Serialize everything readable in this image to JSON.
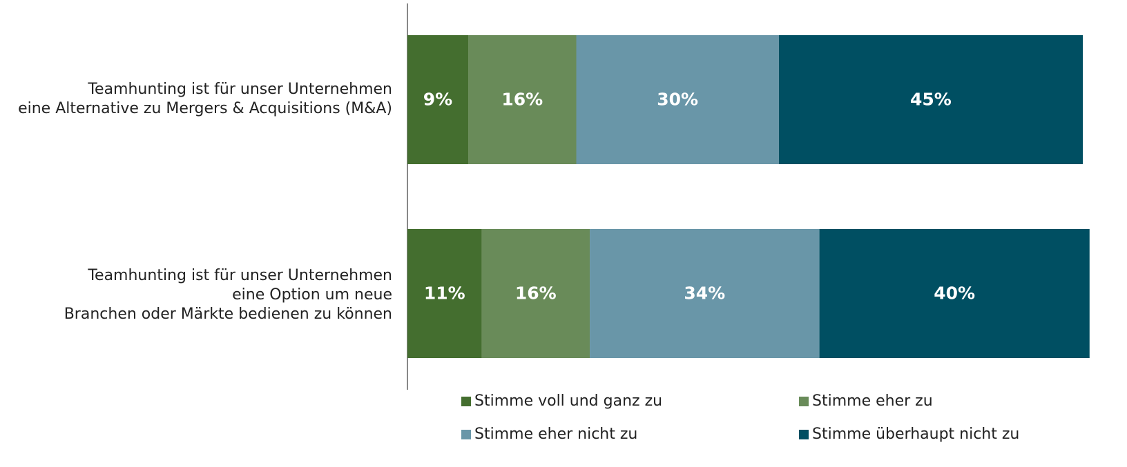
{
  "chart_data": {
    "type": "stacked_bar_horizontal",
    "categories": [
      "Teamhunting ist für unser Unternehmen\neine Alternative zu Mergers & Acquisitions (M&A)",
      "Teamhunting ist für unser Unternehmen\neine Option um neue\nBranchen oder Märkte bedienen zu können"
    ],
    "series": [
      {
        "name": "Stimme voll und ganz zu",
        "color": "#446e2f",
        "values": [
          9,
          11
        ],
        "value_labels": [
          "9%",
          "11%"
        ]
      },
      {
        "name": "Stimme eher zu",
        "color": "#698b59",
        "values": [
          16,
          16
        ],
        "value_labels": [
          "16%",
          "16%"
        ]
      },
      {
        "name": "Stimme eher nicht zu",
        "color": "#6996a8",
        "values": [
          30,
          34
        ],
        "value_labels": [
          "30%",
          "34%"
        ]
      },
      {
        "name": "Stimme überhaupt nicht zu",
        "color": "#004f62",
        "values": [
          45,
          40
        ],
        "value_labels": [
          "45%",
          "40%"
        ]
      }
    ],
    "xlim": [
      0,
      100
    ]
  }
}
